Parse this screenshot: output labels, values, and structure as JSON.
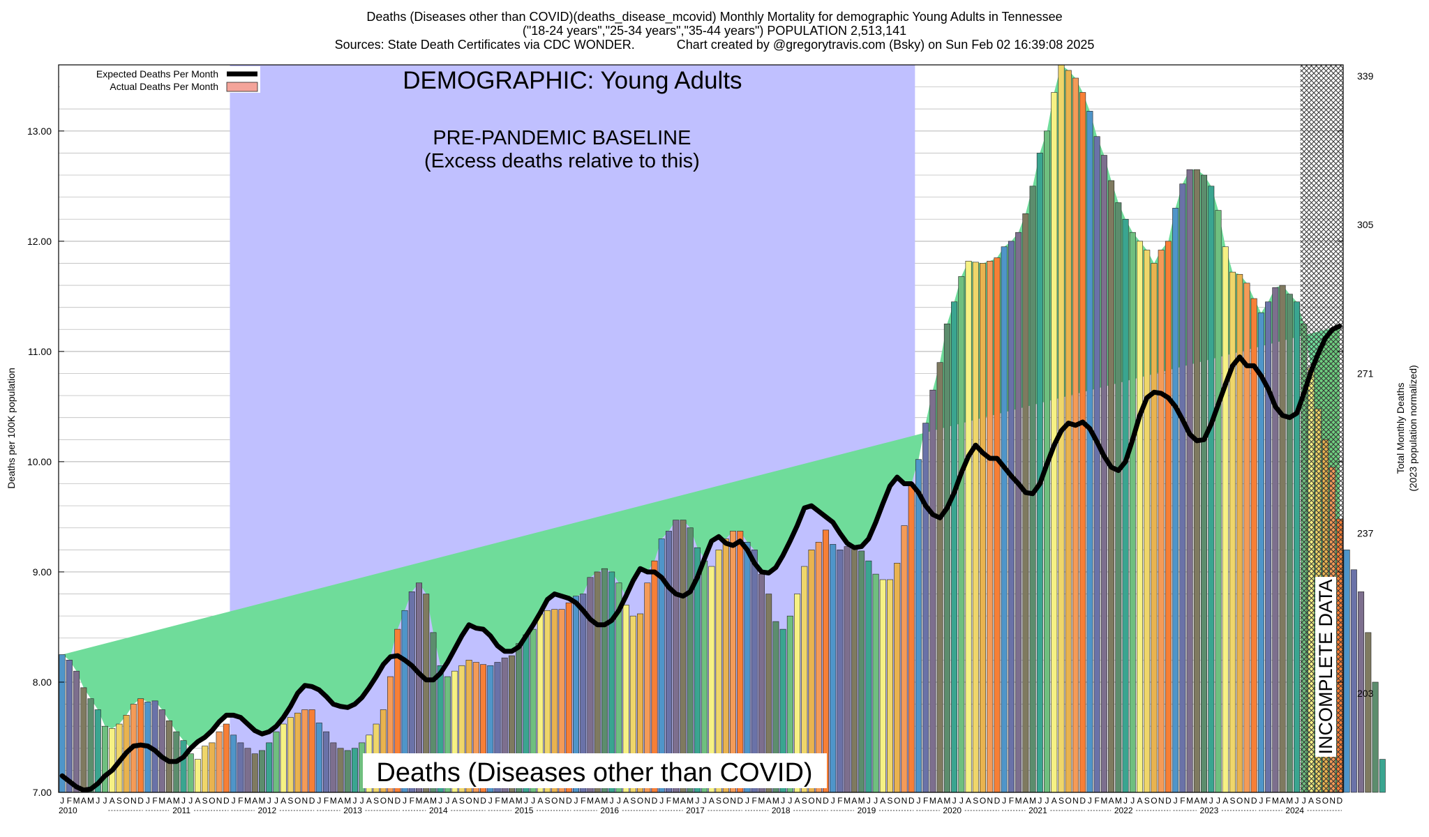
{
  "title_lines": [
    "Deaths (Diseases other than COVID)(deaths_disease_mcovid) Monthly Mortality for demographic Young Adults in Tennessee",
    "(\"18-24 years\",\"25-34 years\",\"35-44 years\") POPULATION 2,513,141",
    "Sources: State Death Certificates via CDC WONDER.            Chart created by @gregorytravis.com (Bsky) on Sun Feb 02 16:39:08 2025"
  ],
  "colors": {
    "baseline_band": "#c0c0ff",
    "excess_fill": "#6fdc9a",
    "expected_line": "#000000",
    "grid": "#bdbdbd",
    "month_palette": [
      "#4f95c9",
      "#6a72a8",
      "#7d6f8e",
      "#7f7a60",
      "#5c8d6d",
      "#3aa590",
      "#6fbf7f",
      "#f6f184",
      "#efd66a",
      "#e9b34f",
      "#f49b58",
      "#f77f36"
    ],
    "incomplete_hatch": "#333333"
  },
  "chart_data": {
    "type": "bar",
    "subtitle": "DEMOGRAPHIC: Young Adults",
    "band_label": [
      "PRE-PANDEMIC BASELINE",
      "(Excess deaths relative to this)"
    ],
    "bottom_label": "Deaths (Diseases other than COVID)",
    "incomplete_label": "INCOMPLETE DATA",
    "ylabel": "Deaths per 100K population",
    "ylabel_right": [
      "Total Monthly Deaths",
      "(2023 population normalized)"
    ],
    "ylim": [
      7.0,
      13.6
    ],
    "yticks": [
      7.0,
      8.0,
      9.0,
      10.0,
      11.0,
      12.0,
      13.0
    ],
    "yticks_text": [
      "7.00",
      "8.00",
      "9.00",
      "10.00",
      "11.00",
      "12.00",
      "13.00"
    ],
    "yticks_right": [
      {
        "value": 7.9,
        "label": "203"
      },
      {
        "value": 9.35,
        "label": "237"
      },
      {
        "value": 10.8,
        "label": "271"
      },
      {
        "value": 12.15,
        "label": "305"
      },
      {
        "value": 13.5,
        "label": "339"
      }
    ],
    "years": [
      "2010",
      "2011",
      "2012",
      "2013",
      "2014",
      "2015",
      "2016",
      "2017",
      "2018",
      "2019",
      "2020",
      "2021",
      "2022",
      "2023",
      "2024"
    ],
    "month_letters": [
      "J",
      "F",
      "M",
      "A",
      "M",
      "J",
      "J",
      "A",
      "S",
      "O",
      "N",
      "D"
    ],
    "legend": [
      {
        "label": "Expected Deaths Per Month",
        "kind": "line"
      },
      {
        "label": "Actual Deaths Per Month",
        "kind": "bar"
      }
    ],
    "baseline_period": {
      "start": "2012-01",
      "end": "2019-12"
    },
    "incomplete_period": {
      "start": "2024-07",
      "end": "2024-12"
    },
    "grid": true,
    "legend_position": "top-left",
    "series": [
      {
        "name": "Actual Deaths Per Month",
        "values": [
          8.25,
          8.2,
          8.1,
          7.95,
          7.85,
          7.75,
          7.6,
          7.58,
          7.62,
          7.7,
          7.8,
          7.85,
          7.82,
          7.83,
          7.75,
          7.65,
          7.55,
          7.47,
          7.35,
          7.3,
          7.42,
          7.45,
          7.55,
          7.62,
          7.52,
          7.45,
          7.4,
          7.35,
          7.38,
          7.45,
          7.55,
          7.62,
          7.68,
          7.72,
          7.75,
          7.75,
          7.63,
          7.55,
          7.45,
          7.4,
          7.38,
          7.4,
          7.45,
          7.52,
          7.62,
          7.75,
          8.05,
          8.48,
          8.65,
          8.82,
          8.9,
          8.8,
          8.45,
          8.15,
          8.05,
          8.1,
          8.15,
          8.2,
          8.18,
          8.16,
          8.15,
          8.18,
          8.22,
          8.24,
          8.35,
          8.43,
          8.48,
          8.62,
          8.65,
          8.66,
          8.66,
          8.72,
          8.78,
          8.8,
          8.95,
          9.0,
          9.03,
          9.0,
          8.9,
          8.7,
          8.6,
          8.62,
          8.9,
          9.1,
          9.3,
          9.37,
          9.47,
          9.47,
          9.4,
          9.22,
          9.1,
          9.05,
          9.2,
          9.3,
          9.37,
          9.37,
          9.27,
          9.2,
          8.98,
          8.8,
          8.55,
          8.48,
          8.6,
          8.8,
          9.05,
          9.2,
          9.27,
          9.38,
          9.25,
          9.2,
          9.23,
          9.22,
          9.19,
          9.1,
          8.98,
          8.93,
          8.93,
          9.08,
          9.42,
          9.78,
          10.02,
          10.35,
          10.65,
          10.9,
          11.25,
          11.45,
          11.68,
          11.82,
          11.81,
          11.8,
          11.82,
          11.85,
          11.95,
          12.0,
          12.08,
          12.25,
          12.5,
          12.8,
          13.0,
          13.35,
          13.6,
          13.55,
          13.48,
          13.35,
          13.18,
          12.95,
          12.78,
          12.55,
          12.35,
          12.2,
          12.08,
          12.0,
          11.92,
          11.8,
          11.92,
          12.0,
          12.3,
          12.52,
          12.65,
          12.65,
          12.6,
          12.5,
          12.28,
          11.95,
          11.72,
          11.7,
          11.62,
          11.48,
          11.35,
          11.45,
          11.58,
          11.6,
          11.52,
          11.45,
          11.25,
          10.85,
          10.48,
          10.2,
          9.95,
          9.48,
          9.2,
          9.02,
          8.82,
          8.45,
          8.0,
          7.3
        ]
      },
      {
        "name": "Expected Deaths Per Month",
        "values": [
          7.15,
          7.1,
          7.05,
          7.02,
          7.03,
          7.08,
          7.15,
          7.2,
          7.28,
          7.36,
          7.42,
          7.43,
          7.42,
          7.38,
          7.32,
          7.28,
          7.28,
          7.32,
          7.4,
          7.46,
          7.5,
          7.56,
          7.64,
          7.7,
          7.7,
          7.68,
          7.62,
          7.56,
          7.53,
          7.55,
          7.6,
          7.68,
          7.78,
          7.9,
          7.97,
          7.96,
          7.93,
          7.87,
          7.8,
          7.78,
          7.77,
          7.8,
          7.86,
          7.95,
          8.05,
          8.16,
          8.23,
          8.24,
          8.2,
          8.15,
          8.08,
          8.02,
          8.02,
          8.08,
          8.18,
          8.3,
          8.42,
          8.52,
          8.49,
          8.48,
          8.42,
          8.33,
          8.28,
          8.28,
          8.32,
          8.42,
          8.52,
          8.63,
          8.75,
          8.8,
          8.78,
          8.76,
          8.72,
          8.65,
          8.57,
          8.52,
          8.52,
          8.56,
          8.65,
          8.78,
          8.92,
          9.03,
          9.0,
          9.0,
          8.95,
          8.86,
          8.8,
          8.78,
          8.82,
          8.95,
          9.12,
          9.28,
          9.32,
          9.26,
          9.24,
          9.28,
          9.2,
          9.08,
          9.0,
          8.99,
          9.04,
          9.15,
          9.28,
          9.42,
          9.58,
          9.6,
          9.55,
          9.5,
          9.45,
          9.35,
          9.26,
          9.22,
          9.23,
          9.3,
          9.45,
          9.62,
          9.78,
          9.86,
          9.8,
          9.8,
          9.72,
          9.6,
          9.52,
          9.49,
          9.58,
          9.72,
          9.9,
          10.05,
          10.15,
          10.08,
          10.03,
          10.03,
          9.95,
          9.87,
          9.8,
          9.72,
          9.71,
          9.8,
          9.98,
          10.15,
          10.28,
          10.35,
          10.33,
          10.36,
          10.3,
          10.18,
          10.05,
          9.95,
          9.92,
          10.0,
          10.2,
          10.42,
          10.58,
          10.63,
          10.62,
          10.58,
          10.5,
          10.38,
          10.25,
          10.19,
          10.2,
          10.34,
          10.52,
          10.7,
          10.87,
          10.95,
          10.87,
          10.87,
          10.78,
          10.66,
          10.5,
          10.42,
          10.4,
          10.44,
          10.62,
          10.82,
          10.98,
          11.12,
          11.2,
          11.23
        ]
      }
    ]
  }
}
